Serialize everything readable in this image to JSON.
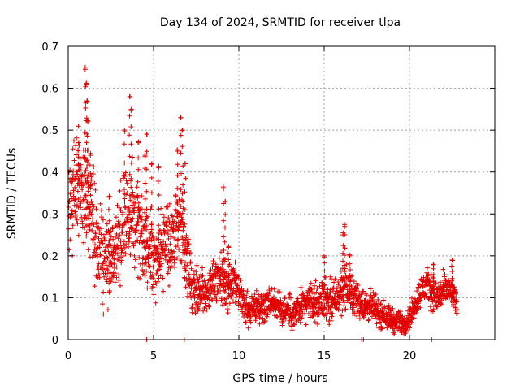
{
  "chart_data": {
    "type": "scatter",
    "title": "Day 134 of 2024, SRMTID for receiver tlpa",
    "xlabel": "GPS time / hours",
    "ylabel": "SRMTID / TECUs",
    "xlim": [
      0,
      25
    ],
    "ylim": [
      0,
      0.7
    ],
    "xticks": [
      0,
      5,
      10,
      15,
      20
    ],
    "xtick_labels": [
      "0",
      "5",
      "10",
      "15",
      "20"
    ],
    "yticks": [
      0,
      0.1,
      0.2,
      0.3,
      0.4,
      0.5,
      0.6,
      0.7
    ],
    "ytick_labels": [
      "0",
      "0.1",
      "0.2",
      "0.3",
      "0.4",
      "0.5",
      "0.6",
      "0.7"
    ],
    "grid": true,
    "marker": "+",
    "color": "#e00000",
    "series": [
      {
        "name": "SRMTID",
        "trend": [
          [
            0,
            0.31
          ],
          [
            0.3,
            0.36
          ],
          [
            0.6,
            0.37
          ],
          [
            0.9,
            0.36
          ],
          [
            1.2,
            0.32
          ],
          [
            1.5,
            0.27
          ],
          [
            1.8,
            0.22
          ],
          [
            2.1,
            0.19
          ],
          [
            2.4,
            0.18
          ],
          [
            2.7,
            0.2
          ],
          [
            3.0,
            0.23
          ],
          [
            3.3,
            0.28
          ],
          [
            3.6,
            0.3
          ],
          [
            3.9,
            0.3
          ],
          [
            4.2,
            0.27
          ],
          [
            4.5,
            0.23
          ],
          [
            4.8,
            0.21
          ],
          [
            5.1,
            0.2
          ],
          [
            5.4,
            0.21
          ],
          [
            5.7,
            0.22
          ],
          [
            6.0,
            0.23
          ],
          [
            6.3,
            0.26
          ],
          [
            6.6,
            0.27
          ],
          [
            6.9,
            0.19
          ],
          [
            7.2,
            0.13
          ],
          [
            7.5,
            0.12
          ],
          [
            7.8,
            0.12
          ],
          [
            8.1,
            0.11
          ],
          [
            8.4,
            0.13
          ],
          [
            8.7,
            0.15
          ],
          [
            9.0,
            0.14
          ],
          [
            9.3,
            0.12
          ],
          [
            9.6,
            0.13
          ],
          [
            9.9,
            0.12
          ],
          [
            10.2,
            0.09
          ],
          [
            10.5,
            0.07
          ],
          [
            10.8,
            0.07
          ],
          [
            11.1,
            0.08
          ],
          [
            11.4,
            0.08
          ],
          [
            11.7,
            0.09
          ],
          [
            12.0,
            0.09
          ],
          [
            12.3,
            0.08
          ],
          [
            12.6,
            0.07
          ],
          [
            12.9,
            0.07
          ],
          [
            13.2,
            0.06
          ],
          [
            13.5,
            0.07
          ],
          [
            13.8,
            0.08
          ],
          [
            14.1,
            0.09
          ],
          [
            14.4,
            0.09
          ],
          [
            14.7,
            0.09
          ],
          [
            15.0,
            0.1
          ],
          [
            15.3,
            0.09
          ],
          [
            15.6,
            0.09
          ],
          [
            15.9,
            0.11
          ],
          [
            16.2,
            0.13
          ],
          [
            16.5,
            0.11
          ],
          [
            16.8,
            0.1
          ],
          [
            17.1,
            0.09
          ],
          [
            17.4,
            0.08
          ],
          [
            17.7,
            0.08
          ],
          [
            18.0,
            0.07
          ],
          [
            18.3,
            0.06
          ],
          [
            18.6,
            0.06
          ],
          [
            18.9,
            0.05
          ],
          [
            19.2,
            0.04
          ],
          [
            19.5,
            0.04
          ],
          [
            19.8,
            0.04
          ],
          [
            20.1,
            0.06
          ],
          [
            20.4,
            0.09
          ],
          [
            20.7,
            0.12
          ],
          [
            21.0,
            0.13
          ],
          [
            21.3,
            0.12
          ],
          [
            21.6,
            0.1
          ],
          [
            21.9,
            0.11
          ],
          [
            22.2,
            0.12
          ],
          [
            22.5,
            0.11
          ],
          [
            22.8,
            0.08
          ]
        ],
        "spread": [
          [
            0,
            0.09
          ],
          [
            1.0,
            0.1
          ],
          [
            2.0,
            0.07
          ],
          [
            3.0,
            0.08
          ],
          [
            4.0,
            0.09
          ],
          [
            5.0,
            0.07
          ],
          [
            6.0,
            0.07
          ],
          [
            7.0,
            0.06
          ],
          [
            8.0,
            0.03
          ],
          [
            9.0,
            0.05
          ],
          [
            10.0,
            0.03
          ],
          [
            12.0,
            0.025
          ],
          [
            14.0,
            0.03
          ],
          [
            16.0,
            0.04
          ],
          [
            17.0,
            0.03
          ],
          [
            19.0,
            0.02
          ],
          [
            20.0,
            0.02
          ],
          [
            21.0,
            0.03
          ],
          [
            22.0,
            0.03
          ],
          [
            22.8,
            0.02
          ]
        ],
        "peaks": [
          [
            0.6,
            0.47
          ],
          [
            1.0,
            0.65
          ],
          [
            1.05,
            0.61
          ],
          [
            1.1,
            0.57
          ],
          [
            1.15,
            0.52
          ],
          [
            1.3,
            0.44
          ],
          [
            2.4,
            0.34
          ],
          [
            3.3,
            0.5
          ],
          [
            3.6,
            0.58
          ],
          [
            3.7,
            0.55
          ],
          [
            4.1,
            0.47
          ],
          [
            4.5,
            0.44
          ],
          [
            4.6,
            0.49
          ],
          [
            4.9,
            0.42
          ],
          [
            5.3,
            0.41
          ],
          [
            6.4,
            0.45
          ],
          [
            6.6,
            0.53
          ],
          [
            6.7,
            0.5
          ],
          [
            6.85,
            0.42
          ],
          [
            9.1,
            0.36
          ],
          [
            9.2,
            0.33
          ],
          [
            9.4,
            0.22
          ],
          [
            15.0,
            0.2
          ],
          [
            16.2,
            0.27
          ],
          [
            16.5,
            0.2
          ],
          [
            16.1,
            0.25
          ],
          [
            21.4,
            0.18
          ],
          [
            22.5,
            0.19
          ]
        ],
        "lows": [
          [
            4.6,
            0.0
          ],
          [
            6.8,
            0.0
          ],
          [
            17.2,
            0.0
          ],
          [
            17.3,
            0.0
          ],
          [
            21.3,
            0.0
          ],
          [
            21.5,
            0.0
          ]
        ],
        "x_range": [
          0,
          22.8
        ],
        "point_count": 2300
      }
    ]
  }
}
